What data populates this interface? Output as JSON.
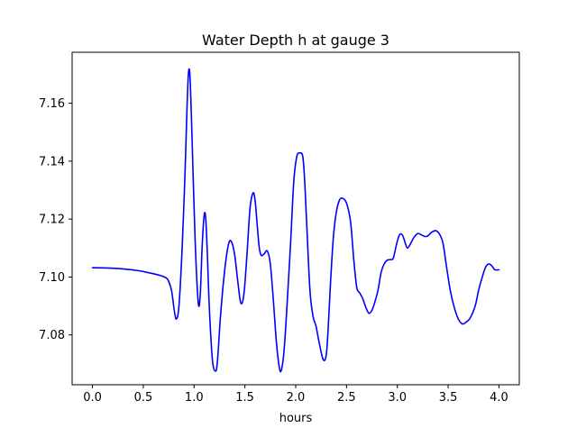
{
  "chart_data": {
    "type": "line",
    "title": "Water Depth h at gauge 3",
    "xlabel": "hours",
    "ylabel": "",
    "xlim": [
      -0.2,
      4.2
    ],
    "ylim": [
      7.0628,
      7.1776
    ],
    "x_ticks": [
      0.0,
      0.5,
      1.0,
      1.5,
      2.0,
      2.5,
      3.0,
      3.5,
      4.0
    ],
    "x_tick_labels": [
      "0.0",
      "0.5",
      "1.0",
      "1.5",
      "2.0",
      "2.5",
      "3.0",
      "3.5",
      "4.0"
    ],
    "y_ticks": [
      7.08,
      7.1,
      7.12,
      7.14,
      7.16
    ],
    "y_tick_labels": [
      "7.08",
      "7.10",
      "7.12",
      "7.14",
      "7.16"
    ],
    "grid": false,
    "legend": "none",
    "series": [
      {
        "color": "#0000ff",
        "x": [
          0.0,
          0.15,
          0.3,
          0.45,
          0.55,
          0.65,
          0.72,
          0.75,
          0.78,
          0.805,
          0.825,
          0.85,
          0.88,
          0.91,
          0.93,
          0.945,
          0.96,
          0.98,
          1.01,
          1.04,
          1.06,
          1.08,
          1.1,
          1.115,
          1.13,
          1.15,
          1.18,
          1.21,
          1.23,
          1.26,
          1.3,
          1.34,
          1.37,
          1.4,
          1.43,
          1.46,
          1.49,
          1.52,
          1.55,
          1.58,
          1.6,
          1.62,
          1.64,
          1.66,
          1.69,
          1.72,
          1.75,
          1.78,
          1.81,
          1.84,
          1.86,
          1.885,
          1.91,
          1.95,
          1.98,
          2.01,
          2.04,
          2.07,
          2.09,
          2.11,
          2.14,
          2.17,
          2.2,
          2.23,
          2.27,
          2.3,
          2.32,
          2.34,
          2.37,
          2.4,
          2.43,
          2.46,
          2.5,
          2.54,
          2.57,
          2.6,
          2.63,
          2.66,
          2.69,
          2.72,
          2.75,
          2.78,
          2.81,
          2.84,
          2.87,
          2.9,
          2.93,
          2.96,
          2.99,
          3.02,
          3.05,
          3.08,
          3.1,
          3.13,
          3.16,
          3.2,
          3.24,
          3.27,
          3.3,
          3.34,
          3.38,
          3.42,
          3.45,
          3.48,
          3.52,
          3.56,
          3.6,
          3.64,
          3.68,
          3.71,
          3.74,
          3.77,
          3.8,
          3.84,
          3.87,
          3.9,
          3.93,
          3.96,
          4.0
        ],
        "y": [
          7.1032,
          7.1031,
          7.1028,
          7.1022,
          7.1015,
          7.1007,
          7.0998,
          7.0985,
          7.095,
          7.0885,
          7.0855,
          7.0895,
          7.108,
          7.135,
          7.158,
          7.1705,
          7.169,
          7.148,
          7.113,
          7.0915,
          7.0935,
          7.111,
          7.1215,
          7.12,
          7.1085,
          7.0895,
          7.0715,
          7.0675,
          7.071,
          7.0865,
          7.102,
          7.1115,
          7.112,
          7.1075,
          7.0985,
          7.091,
          7.094,
          7.1075,
          7.1235,
          7.129,
          7.1265,
          7.1185,
          7.1105,
          7.1075,
          7.108,
          7.109,
          7.1045,
          7.092,
          7.0775,
          7.0685,
          7.068,
          7.0745,
          7.0875,
          7.112,
          7.1325,
          7.1415,
          7.1428,
          7.1415,
          7.132,
          7.117,
          7.0955,
          7.0865,
          7.083,
          7.0775,
          7.0715,
          7.073,
          7.0825,
          7.0965,
          7.1135,
          7.1225,
          7.1265,
          7.1272,
          7.1255,
          7.119,
          7.1065,
          7.0965,
          7.0945,
          7.0925,
          7.0895,
          7.0875,
          7.0885,
          7.0915,
          7.0955,
          7.1015,
          7.1045,
          7.1058,
          7.106,
          7.1065,
          7.111,
          7.1145,
          7.1145,
          7.1115,
          7.11,
          7.1115,
          7.1135,
          7.115,
          7.1145,
          7.114,
          7.1142,
          7.1155,
          7.116,
          7.1145,
          7.1115,
          7.1045,
          7.0955,
          7.0895,
          7.0855,
          7.0838,
          7.0845,
          7.0855,
          7.0875,
          7.0905,
          7.0955,
          7.1005,
          7.1035,
          7.1045,
          7.1038,
          7.1025,
          7.1025
        ]
      }
    ]
  }
}
